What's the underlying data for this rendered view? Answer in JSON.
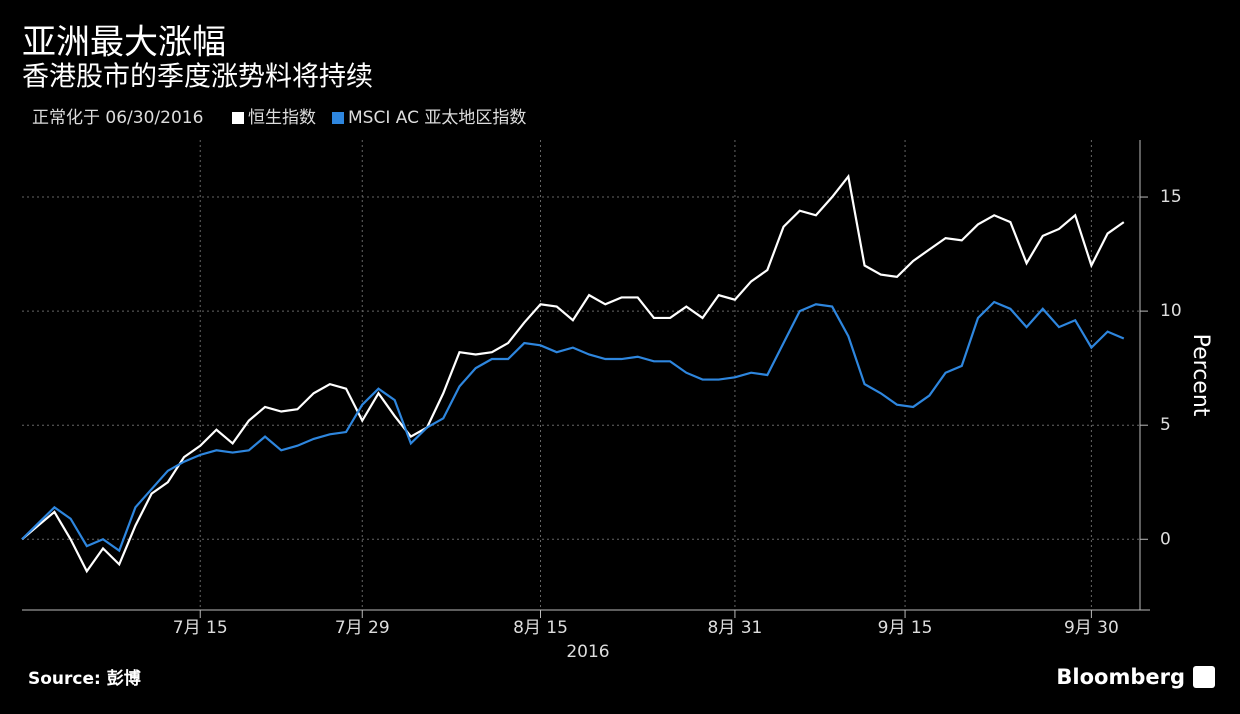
{
  "chart_data": {
    "type": "line",
    "title": "亚洲最大涨幅",
    "subtitle": "香港股市的季度涨势料将持续",
    "note": "正常化于 06/30/2016",
    "y_label": "Percent",
    "x_label": "2016",
    "source": "Source: 彭博",
    "brand": "Bloomberg",
    "series": [
      {
        "name": "恒生指数",
        "color": "#ffffff",
        "values": [
          0,
          0.6,
          1.2,
          0.0,
          -1.4,
          -0.4,
          -1.1,
          0.6,
          2.0,
          2.5,
          3.6,
          4.1,
          4.8,
          4.2,
          5.2,
          5.8,
          5.6,
          5.7,
          6.4,
          6.8,
          6.6,
          5.2,
          6.4,
          5.4,
          4.5,
          4.9,
          6.4,
          8.2,
          8.1,
          8.2,
          8.6,
          9.5,
          10.3,
          10.2,
          9.6,
          10.7,
          10.3,
          10.6,
          10.6,
          9.7,
          9.7,
          10.2,
          9.7,
          10.7,
          10.5,
          11.3,
          11.8,
          13.7,
          14.4,
          14.2,
          15.0,
          15.9,
          12.0,
          11.6,
          11.5,
          12.2,
          12.7,
          13.2,
          13.1,
          13.8,
          14.2,
          13.9,
          12.1,
          13.3,
          13.6,
          14.2,
          12.0,
          13.4,
          13.9
        ]
      },
      {
        "name": "MSCI AC 亚太地区指数",
        "color": "#2e86de",
        "values": [
          0,
          0.7,
          1.4,
          0.9,
          -0.3,
          0.0,
          -0.5,
          1.4,
          2.2,
          3.0,
          3.4,
          3.7,
          3.9,
          3.8,
          3.9,
          4.5,
          3.9,
          4.1,
          4.4,
          4.6,
          4.7,
          5.9,
          6.6,
          6.1,
          4.2,
          4.9,
          5.3,
          6.7,
          7.5,
          7.9,
          7.9,
          8.6,
          8.5,
          8.2,
          8.4,
          8.1,
          7.9,
          7.9,
          8.0,
          7.8,
          7.8,
          7.3,
          7.0,
          7.0,
          7.1,
          7.3,
          7.2,
          8.6,
          10.0,
          10.3,
          10.2,
          8.9,
          6.8,
          6.4,
          5.9,
          5.8,
          6.3,
          7.3,
          7.6,
          9.7,
          10.4,
          10.1,
          9.3,
          10.1,
          9.3,
          9.6,
          8.4,
          9.1,
          8.8
        ]
      }
    ],
    "xlim": [
      0,
      69
    ],
    "xticks": [
      {
        "value": 11,
        "label": "7月 15"
      },
      {
        "value": 21,
        "label": "7月 29"
      },
      {
        "value": 32,
        "label": "8月 15"
      },
      {
        "value": 44,
        "label": "8月 31"
      },
      {
        "value": 54.5,
        "label": "9月 15"
      },
      {
        "value": 66,
        "label": "9月 30"
      }
    ],
    "ylim": [
      -3.1,
      17.5
    ],
    "yticks": [
      0,
      5,
      10,
      15
    ],
    "grid": true
  }
}
